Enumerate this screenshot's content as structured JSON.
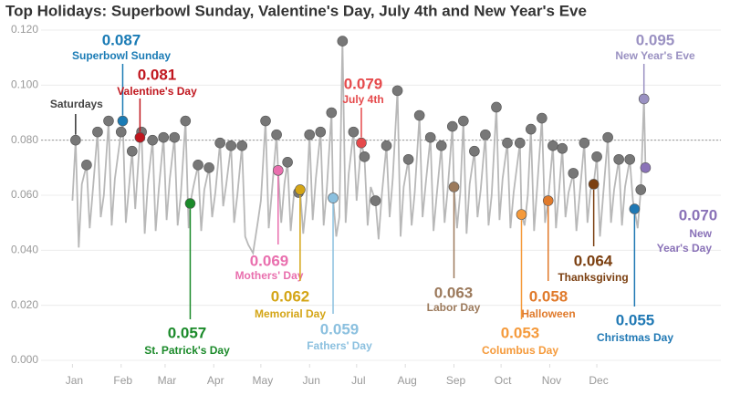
{
  "chart_data": {
    "type": "line",
    "title": "Top Holidays: Superbowl Sunday, Valentine's Day, July 4th and New Year's Eve",
    "xlim": [
      -19,
      414
    ],
    "xticks": [
      {
        "value": 1,
        "label": "Jan"
      },
      {
        "value": 32,
        "label": "Feb"
      },
      {
        "value": 60,
        "label": "Mar"
      },
      {
        "value": 91,
        "label": "Apr"
      },
      {
        "value": 121,
        "label": "May"
      },
      {
        "value": 152,
        "label": "Jun"
      },
      {
        "value": 182,
        "label": "Jul"
      },
      {
        "value": 213,
        "label": "Aug"
      },
      {
        "value": 244,
        "label": "Sep"
      },
      {
        "value": 274,
        "label": "Oct"
      },
      {
        "value": 305,
        "label": "Nov"
      },
      {
        "value": 335,
        "label": "Dec"
      }
    ],
    "ylim": [
      0,
      0.12
    ],
    "yticks": [
      {
        "value": 0,
        "label": "0.000"
      },
      {
        "value": 0.02,
        "label": "0.020"
      },
      {
        "value": 0.04,
        "label": "0.040"
      },
      {
        "value": 0.06,
        "label": "0.060"
      },
      {
        "value": 0.08,
        "label": "0.080"
      },
      {
        "value": 0.1,
        "label": "0.100"
      },
      {
        "value": 0.12,
        "label": "0.120"
      }
    ],
    "grid": true,
    "reference_line": 0.08,
    "line": {
      "color": "#b8b8b8",
      "x": [
        1,
        3,
        5,
        7,
        10,
        12,
        14,
        17,
        19,
        21,
        24,
        26,
        28,
        32,
        33,
        35,
        37,
        39,
        41,
        44,
        45,
        47,
        49,
        52,
        54,
        56,
        59,
        61,
        63,
        66,
        68,
        70,
        73,
        75,
        76,
        78,
        81,
        83,
        85,
        88,
        90,
        92,
        95,
        97,
        99,
        102,
        104,
        106,
        109,
        111,
        113,
        116,
        119,
        121,
        124,
        126,
        128,
        131,
        132,
        134,
        136,
        138,
        140,
        142,
        145,
        146,
        148,
        150,
        152,
        154,
        156,
        159,
        161,
        163,
        166,
        167,
        169,
        171,
        173,
        175,
        177,
        180,
        182,
        185,
        187,
        189,
        191,
        194,
        196,
        198,
        201,
        203,
        205,
        208,
        210,
        212,
        215,
        217,
        219,
        222,
        224,
        226,
        229,
        231,
        233,
        236,
        238,
        240,
        243,
        244,
        246,
        248,
        250,
        252,
        254,
        257,
        259,
        261,
        264,
        266,
        268,
        271,
        273,
        275,
        278,
        280,
        282,
        286,
        287,
        289,
        291,
        293,
        295,
        297,
        300,
        302,
        304,
        307,
        309,
        311,
        313,
        315,
        317,
        320,
        322,
        324,
        327,
        329,
        331,
        333,
        335,
        337,
        339,
        342,
        344,
        346,
        349,
        351,
        353,
        356,
        358,
        359,
        361,
        363,
        365,
        366
      ],
      "values": [
        0.058,
        0.08,
        0.041,
        0.064,
        0.071,
        0.048,
        0.062,
        0.083,
        0.052,
        0.06,
        0.087,
        0.049,
        0.066,
        0.083,
        0.087,
        0.05,
        0.063,
        0.076,
        0.055,
        0.081,
        0.083,
        0.046,
        0.064,
        0.08,
        0.047,
        0.062,
        0.081,
        0.051,
        0.066,
        0.081,
        0.049,
        0.06,
        0.087,
        0.048,
        0.057,
        0.063,
        0.071,
        0.047,
        0.062,
        0.07,
        0.052,
        0.061,
        0.079,
        0.056,
        0.064,
        0.078,
        0.05,
        0.06,
        0.078,
        0.045,
        0.042,
        0.039,
        0.05,
        0.058,
        0.087,
        0.048,
        0.061,
        0.082,
        0.069,
        0.05,
        0.064,
        0.072,
        0.047,
        0.06,
        0.061,
        0.062,
        0.046,
        0.058,
        0.082,
        0.051,
        0.066,
        0.083,
        0.049,
        0.062,
        0.09,
        0.059,
        0.045,
        0.052,
        0.116,
        0.05,
        0.068,
        0.083,
        0.058,
        0.079,
        0.074,
        0.049,
        0.063,
        0.058,
        0.044,
        0.06,
        0.078,
        0.052,
        0.066,
        0.098,
        0.045,
        0.063,
        0.073,
        0.049,
        0.061,
        0.089,
        0.052,
        0.064,
        0.081,
        0.047,
        0.06,
        0.078,
        0.05,
        0.062,
        0.085,
        0.063,
        0.048,
        0.061,
        0.087,
        0.046,
        0.064,
        0.076,
        0.052,
        0.062,
        0.082,
        0.049,
        0.06,
        0.092,
        0.051,
        0.066,
        0.079,
        0.048,
        0.061,
        0.079,
        0.053,
        0.049,
        0.06,
        0.084,
        0.047,
        0.063,
        0.088,
        0.05,
        0.058,
        0.078,
        0.048,
        0.062,
        0.077,
        0.052,
        0.061,
        0.068,
        0.047,
        0.06,
        0.079,
        0.05,
        0.062,
        0.064,
        0.074,
        0.045,
        0.06,
        0.081,
        0.05,
        0.062,
        0.073,
        0.049,
        0.063,
        0.073,
        0.058,
        0.055,
        0.048,
        0.062,
        0.095,
        0.07
      ]
    },
    "saturdays": {
      "label": "Saturdays",
      "color": "#777777",
      "x": [
        3,
        10,
        17,
        24,
        32,
        39,
        45,
        52,
        59,
        66,
        73,
        81,
        88,
        95,
        102,
        109,
        124,
        131,
        138,
        145,
        152,
        159,
        166,
        173,
        180,
        187,
        194,
        201,
        208,
        215,
        222,
        229,
        236,
        243,
        250,
        257,
        264,
        271,
        278,
        286,
        293,
        300,
        307,
        313,
        320,
        327,
        335,
        342,
        349,
        356,
        363
      ],
      "values": [
        0.08,
        0.071,
        0.083,
        0.087,
        0.083,
        0.076,
        0.083,
        0.08,
        0.081,
        0.081,
        0.087,
        0.071,
        0.07,
        0.079,
        0.078,
        0.078,
        0.087,
        0.082,
        0.072,
        0.061,
        0.082,
        0.083,
        0.09,
        0.116,
        0.083,
        0.074,
        0.058,
        0.078,
        0.098,
        0.073,
        0.089,
        0.081,
        0.078,
        0.085,
        0.087,
        0.076,
        0.082,
        0.092,
        0.079,
        0.079,
        0.084,
        0.088,
        0.078,
        0.077,
        0.068,
        0.079,
        0.074,
        0.081,
        0.073,
        0.073,
        0.062
      ]
    },
    "holidays": [
      {
        "name": "Superbowl Sunday",
        "x": 33,
        "value": 0.087,
        "color": "#1a7bb5"
      },
      {
        "name": "Valentine's Day",
        "x": 44,
        "value": 0.081,
        "color": "#c0161e"
      },
      {
        "name": "St. Patrick's Day",
        "x": 76,
        "value": 0.057,
        "color": "#1b8a2a"
      },
      {
        "name": "Mothers' Day",
        "x": 132,
        "value": 0.069,
        "color": "#e96fae"
      },
      {
        "name": "Memorial Day",
        "x": 146,
        "value": 0.062,
        "color": "#d4a516"
      },
      {
        "name": "Fathers' Day",
        "x": 167,
        "value": 0.059,
        "color": "#8bc0df"
      },
      {
        "name": "July 4th",
        "x": 185,
        "value": 0.079,
        "color": "#e5494b"
      },
      {
        "name": "Labor Day",
        "x": 244,
        "value": 0.063,
        "color": "#9c7a5c"
      },
      {
        "name": "Columbus Day",
        "x": 287,
        "value": 0.053,
        "color": "#f59a3b"
      },
      {
        "name": "Halloween",
        "x": 304,
        "value": 0.058,
        "color": "#e07a2b"
      },
      {
        "name": "Thanksgiving",
        "x": 333,
        "value": 0.064,
        "color": "#7b3f10"
      },
      {
        "name": "Christmas Day",
        "x": 359,
        "value": 0.055,
        "color": "#1f78b4"
      },
      {
        "name": "New Year's Eve",
        "x": 365,
        "value": 0.095,
        "color": "#9a91c2"
      },
      {
        "name": "New Year's Day",
        "x": 366,
        "value": 0.07,
        "value_label": "0.070",
        "color": "#8a72b8"
      }
    ]
  }
}
